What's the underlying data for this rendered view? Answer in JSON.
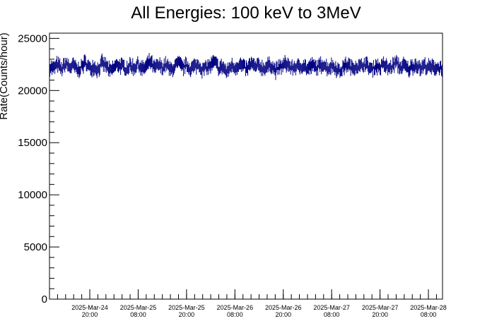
{
  "chart_data": {
    "type": "scatter",
    "title": "All Energies:  100 keV to 3MeV",
    "xlabel": "",
    "ylabel": "Rate(Counts/hour)",
    "ylim": [
      0,
      25500
    ],
    "yticks": [
      0,
      5000,
      10000,
      15000,
      20000,
      25000
    ],
    "ytick_labels": [
      "0",
      "5000",
      "10000",
      "15000",
      "20000",
      "25000"
    ],
    "x_start": "2025-03-24 10:00",
    "x_end": "2025-03-28 11:30",
    "xticks": [
      {
        "date": "2025-03-24 20:00",
        "label1": "2025-Mar-24",
        "label2": "20:00"
      },
      {
        "date": "2025-03-25 08:00",
        "label1": "2025-Mar-25",
        "label2": "08:00"
      },
      {
        "date": "2025-03-25 20:00",
        "label1": "2025-Mar-25",
        "label2": "20:00"
      },
      {
        "date": "2025-03-26 08:00",
        "label1": "2025-Mar-26",
        "label2": "08:00"
      },
      {
        "date": "2025-03-26 20:00",
        "label1": "2025-Mar-26",
        "label2": "20:00"
      },
      {
        "date": "2025-03-27 08:00",
        "label1": "2025-Mar-27",
        "label2": "08:00"
      },
      {
        "date": "2025-03-27 20:00",
        "label1": "2025-Mar-27",
        "label2": "20:00"
      },
      {
        "date": "2025-03-28 08:00",
        "label1": "2025-Mar-28",
        "label2": "08:00"
      }
    ],
    "series": [
      {
        "color": "#000080",
        "marker": "error-bar",
        "typical_y_value": 22300,
        "typical_y_error": 500,
        "values_sampled_hourly_from_2025-03-24_10:00": [
          22300,
          22100,
          22500,
          22000,
          22600,
          22200,
          22400,
          21900,
          22300,
          22700,
          22100,
          22300,
          22000,
          22600,
          22400,
          21800,
          22200,
          22500,
          22300,
          22100,
          22400,
          22200,
          22600,
          22000,
          22300,
          22800,
          22100,
          22400,
          22200,
          22500,
          21900,
          22300,
          22600,
          22200,
          22400,
          22100,
          22300,
          22500,
          22000,
          22200,
          22400,
          22700,
          22100,
          22300,
          21700,
          22400,
          22200,
          22500,
          22300,
          22000,
          22600,
          22200,
          22400,
          22100,
          22300,
          22500,
          21900,
          22200,
          22400,
          22600,
          22100,
          22300,
          22200,
          22500,
          22000,
          22400,
          22200,
          22300,
          22600,
          22100,
          22400,
          22200,
          21800,
          22300,
          22500,
          22100,
          22400,
          22200,
          22600,
          22300,
          22000,
          22400,
          22200,
          22500,
          22100,
          22300,
          22700,
          22200,
          22400,
          22000,
          22300,
          22500,
          22100,
          22400,
          22200
        ]
      }
    ],
    "grid": false,
    "legend": "none"
  }
}
